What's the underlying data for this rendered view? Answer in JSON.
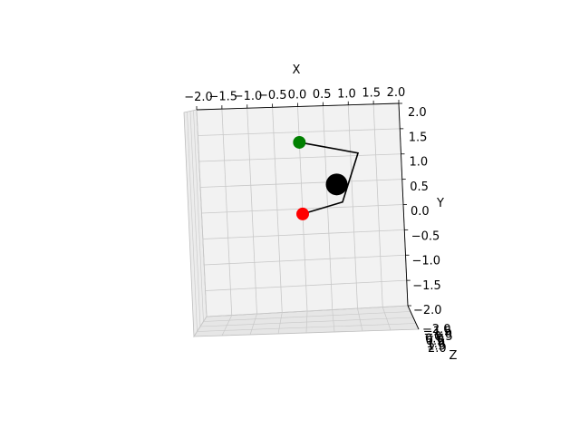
{
  "chart_data": {
    "type": "scatter",
    "projection": "3d",
    "axes": {
      "x": {
        "label": "X",
        "lim": [
          -2.0,
          2.0
        ],
        "ticks": [
          "−2.0",
          "−1.5",
          "−1.0",
          "−0.5",
          "0.0",
          "0.5",
          "1.0",
          "1.5",
          "2.0"
        ]
      },
      "y": {
        "label": "Y",
        "lim": [
          -2.0,
          2.0
        ],
        "ticks": [
          "2.0",
          "1.5",
          "1.0",
          "0.5",
          "0.0",
          "−0.5",
          "−1.0",
          "−1.5",
          "−2.0"
        ]
      },
      "z": {
        "label": "Z",
        "lim": [
          -2.0,
          2.0
        ],
        "ticks": [
          "−2.0",
          "−1.5",
          "−1.0",
          "−0.5",
          "0.0",
          "0.5",
          "1.0",
          "1.5",
          "2.0"
        ]
      }
    },
    "grid": true,
    "pane_color": "#f2f2f2",
    "line": {
      "color": "#000000",
      "points": [
        {
          "x": 0.0,
          "y": 1.3
        },
        {
          "x": 1.15,
          "y": 1.05
        },
        {
          "x": 0.8,
          "y": 0.1
        },
        {
          "x": 0.0,
          "y": -0.1
        }
      ]
    },
    "markers": [
      {
        "name": "green",
        "x": 0.0,
        "y": 1.3,
        "color": "#008000",
        "size": "medium"
      },
      {
        "name": "black",
        "x": 0.7,
        "y": 0.45,
        "color": "#000000",
        "size": "large"
      },
      {
        "name": "red",
        "x": 0.0,
        "y": -0.1,
        "color": "#ff0000",
        "size": "medium"
      }
    ]
  }
}
